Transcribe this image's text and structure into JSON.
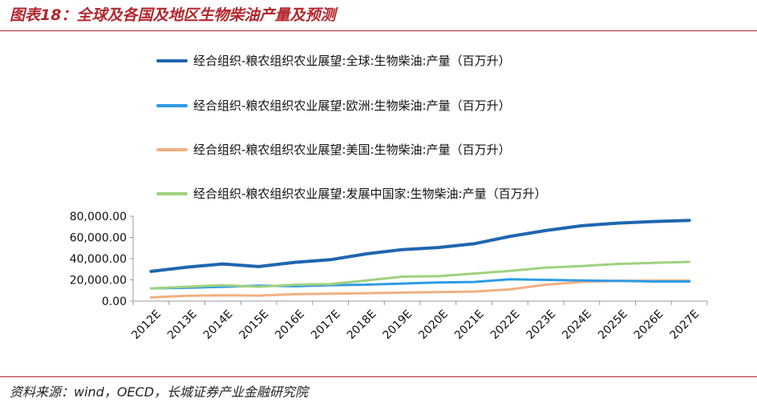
{
  "figure_title": "图表18：全球及各国及地区生物柴油产量及预测",
  "source_text": "资料来源：wind，OECD，长城证券产业金融研究院",
  "colors": {
    "brand_red": "#b3262d",
    "axis": "#999999"
  },
  "chart_data": {
    "type": "line",
    "title": "",
    "xlabel": "",
    "ylabel": "",
    "categories": [
      "2012E",
      "2013E",
      "2014E",
      "2015E",
      "2016E",
      "2017E",
      "2018E",
      "2019E",
      "2020E",
      "2021E",
      "2022E",
      "2023E",
      "2024E",
      "2025E",
      "2026E",
      "2027E"
    ],
    "ylim": [
      0,
      80000
    ],
    "y_ticks": [
      "0.00",
      "20,000.00",
      "40,000.00",
      "60,000.00",
      "80,000.00"
    ],
    "grid": false,
    "legend_position": "top",
    "series": [
      {
        "name": "经合组织-粮农组织农业展望:全球:生物柴油:产量（百万升）",
        "color": "#1f66b0",
        "values": [
          28000,
          32000,
          35000,
          32500,
          36500,
          39000,
          44500,
          48500,
          50500,
          54000,
          61000,
          66500,
          71000,
          73500,
          75000,
          76000
        ]
      },
      {
        "name": "经合组织-粮农组织农业展望:欧洲:生物柴油:产量（百万升）",
        "color": "#2f9be6",
        "values": [
          12000,
          12500,
          13500,
          14500,
          14000,
          15000,
          15500,
          16500,
          17500,
          18000,
          20500,
          20000,
          19500,
          19000,
          18500,
          18500
        ]
      },
      {
        "name": "经合组织-粮农组织农业展望:美国:生物柴油:产量（百万升）",
        "color": "#f0b080",
        "values": [
          3500,
          5000,
          5500,
          5200,
          6500,
          7000,
          7500,
          8000,
          8500,
          9000,
          11000,
          15500,
          18000,
          19000,
          19500,
          19500
        ]
      },
      {
        "name": "经合组织-粮农组织农业展望:发展中国家:生物柴油:产量（百万升）",
        "color": "#9fd27f",
        "values": [
          12000,
          13500,
          15000,
          13500,
          15500,
          16000,
          19500,
          23000,
          23500,
          26000,
          28500,
          31500,
          33000,
          35000,
          36000,
          37000
        ]
      }
    ]
  }
}
